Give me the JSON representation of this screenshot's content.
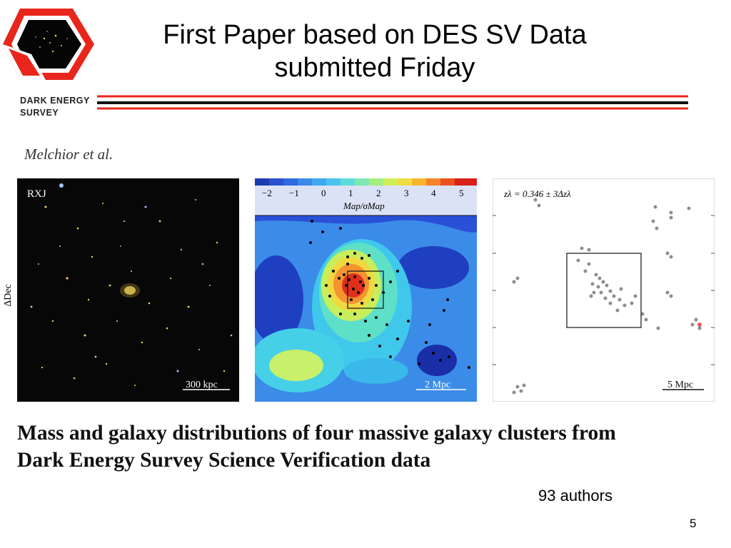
{
  "slide": {
    "title_line1": "First Paper based on DES SV Data",
    "title_line2": "submitted Friday",
    "logo_line1": "DARK ENERGY",
    "logo_line2": "SURVEY",
    "citation": "Melchior et al.",
    "paper_title_line1": "Mass and galaxy distributions of four massive galaxy clusters from",
    "paper_title_line2": "Dark Energy Survey Science Verification data",
    "authors_count": "93 authors",
    "page_number": "5"
  },
  "figure": {
    "y_axis_label": "ΔDec",
    "panel1": {
      "label": "RXJ",
      "scale_label": "300 kpc"
    },
    "panel2": {
      "colorbar_ticks": [
        "−2",
        "−1",
        "0",
        "1",
        "2",
        "3",
        "4",
        "5"
      ],
      "colorbar_label": "Map/σMap",
      "scale_label": "2 Mpc"
    },
    "panel3": {
      "label": "zλ = 0.346 ± 3Δzλ",
      "scale_label": "5 Mpc"
    }
  },
  "colors": {
    "red_rule": "#e8261c",
    "black_rule": "#111111",
    "logo_red": "#e8261c"
  }
}
